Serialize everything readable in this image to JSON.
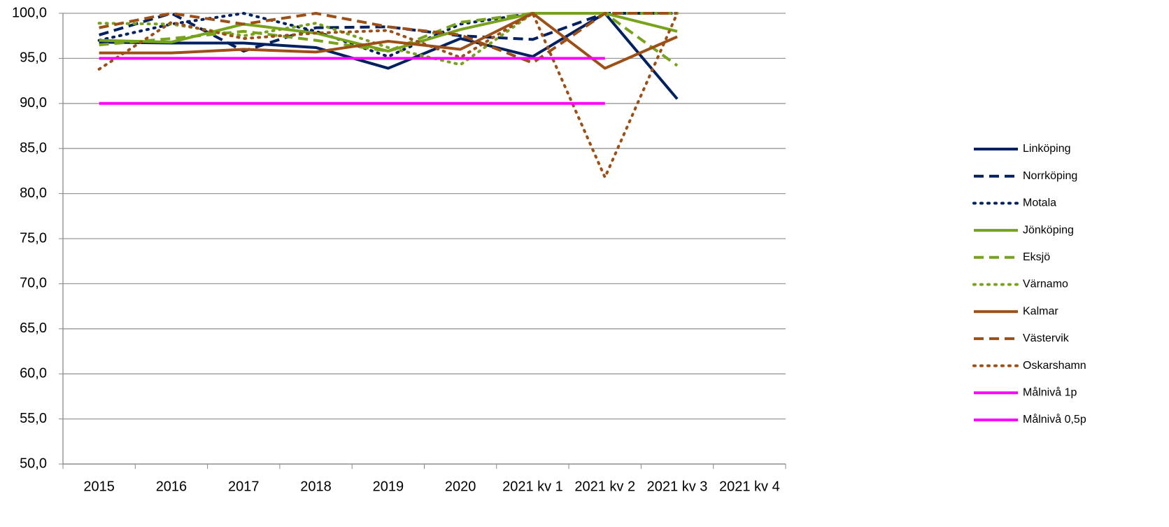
{
  "chart_data": {
    "type": "line",
    "categories": [
      "2015",
      "2016",
      "2017",
      "2018",
      "2019",
      "2020",
      "2021 kv 1",
      "2021 kv 2",
      "2021 kv 3",
      "2021 kv 4"
    ],
    "ylim": [
      50,
      100
    ],
    "yticks": [
      {
        "value": 50,
        "label": "50,0"
      },
      {
        "value": 55,
        "label": "55,0"
      },
      {
        "value": 60,
        "label": "60,0"
      },
      {
        "value": 65,
        "label": "65,0"
      },
      {
        "value": 70,
        "label": "70,0"
      },
      {
        "value": 75,
        "label": "75,0"
      },
      {
        "value": 80,
        "label": "80,0"
      },
      {
        "value": 85,
        "label": "85,0"
      },
      {
        "value": 90,
        "label": "90,0"
      },
      {
        "value": 95,
        "label": "95,0"
      },
      {
        "value": 100,
        "label": "100,0"
      }
    ],
    "grid": true,
    "legend": "right",
    "series": [
      {
        "name": "Linköping",
        "color": "#002060",
        "dash": "solid",
        "values": [
          96.8,
          96.7,
          96.7,
          96.2,
          93.9,
          97.2,
          95.2,
          100,
          90.5,
          null
        ]
      },
      {
        "name": "Norrköping",
        "color": "#002060",
        "dash": "dash",
        "values": [
          97.6,
          100,
          95.8,
          98.4,
          98.5,
          97.5,
          97.1,
          100,
          100,
          null
        ]
      },
      {
        "name": "Motala",
        "color": "#002060",
        "dash": "dot",
        "values": [
          97.0,
          98.8,
          100,
          98.0,
          95.2,
          98.8,
          100,
          100,
          100,
          null
        ]
      },
      {
        "name": "Jönköping",
        "color": "#77a31c",
        "dash": "solid",
        "values": [
          97.0,
          96.8,
          98.8,
          97.8,
          95.8,
          98.2,
          100,
          100,
          98.0,
          null
        ]
      },
      {
        "name": "Eksjö",
        "color": "#77a31c",
        "dash": "dash",
        "values": [
          96.5,
          97.2,
          98.0,
          97.0,
          95.8,
          99.0,
          100,
          100,
          94.2,
          null
        ]
      },
      {
        "name": "Värnamo",
        "color": "#77a31c",
        "dash": "dot",
        "values": [
          98.9,
          98.8,
          97.5,
          98.9,
          96.2,
          94.3,
          100,
          100,
          100,
          null
        ]
      },
      {
        "name": "Kalmar",
        "color": "#9c4f16",
        "dash": "solid",
        "values": [
          95.6,
          95.6,
          96.0,
          95.7,
          96.9,
          96.0,
          100,
          93.9,
          97.4,
          null
        ]
      },
      {
        "name": "Västervik",
        "color": "#9c4f16",
        "dash": "dash",
        "values": [
          98.4,
          100,
          98.8,
          100,
          98.5,
          97.6,
          94.5,
          100,
          100,
          null
        ]
      },
      {
        "name": "Oskarshamn",
        "color": "#9c4f16",
        "dash": "dot",
        "values": [
          93.8,
          99.0,
          97.2,
          97.8,
          98.1,
          95.1,
          100,
          81.8,
          100,
          null
        ]
      },
      {
        "name": "Målnivå 1p",
        "color": "#ff00ff",
        "dash": "solid",
        "values": [
          95,
          95,
          95,
          95,
          95,
          95,
          95,
          95,
          null,
          null
        ]
      },
      {
        "name": "Målnivå 0,5p",
        "color": "#ff00ff",
        "dash": "solid",
        "values": [
          90,
          90,
          90,
          90,
          90,
          90,
          90,
          90,
          null,
          null
        ]
      }
    ]
  }
}
